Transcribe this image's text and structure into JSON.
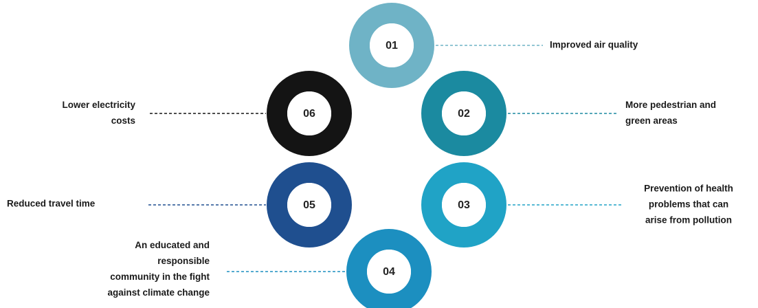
{
  "nodes": [
    {
      "number": "01",
      "label": [
        "Improved air quality"
      ]
    },
    {
      "number": "02",
      "label": [
        "More pedestrian and",
        "green areas"
      ]
    },
    {
      "number": "03",
      "label": [
        "Prevention of health",
        "problems that can",
        "arise from pollution"
      ]
    },
    {
      "number": "04",
      "label": [
        "An educated and",
        "responsible",
        "community in the fight",
        "against climate change"
      ]
    },
    {
      "number": "05",
      "label": [
        "Reduced travel time"
      ]
    },
    {
      "number": "06",
      "label": [
        "Lower electricity",
        "costs"
      ]
    }
  ]
}
